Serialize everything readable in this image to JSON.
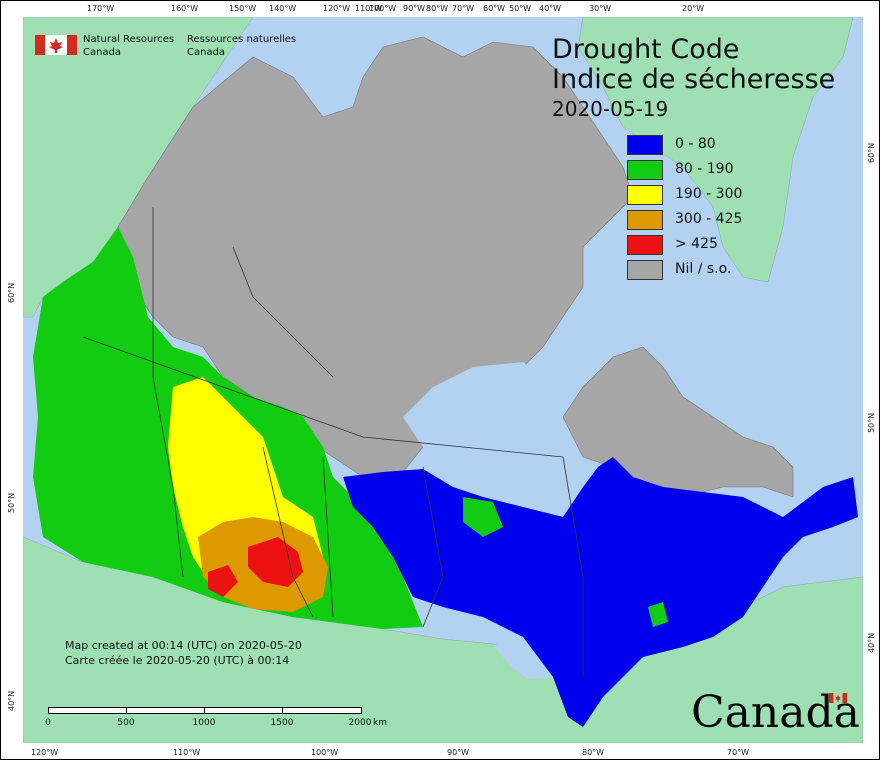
{
  "header": {
    "agency_en_line1": "Natural Resources",
    "agency_en_line2": "Canada",
    "agency_fr_line1": "Ressources naturelles",
    "agency_fr_line2": "Canada"
  },
  "title": {
    "en": "Drought Code",
    "fr": "Indice de sécheresse",
    "date": "2020-05-19"
  },
  "legend": [
    {
      "label": "0 - 80",
      "color": "#0000ee"
    },
    {
      "label": "80 - 190",
      "color": "#11cc11"
    },
    {
      "label": "190 - 300",
      "color": "#ffff00"
    },
    {
      "label": "300 - 425",
      "color": "#dd9900"
    },
    {
      "label": "> 425",
      "color": "#ee1111"
    },
    {
      "label": "Nil / s.o.",
      "color": "#a6a6a6"
    }
  ],
  "credits": {
    "line1": "Map created at 00:14 (UTC) on 2020-05-20",
    "line2": "Carte créée le 2020-05-20 (UTC) à 00:14"
  },
  "scale_bar": {
    "labels": [
      "0",
      "500",
      "1000",
      "1500",
      "2000"
    ],
    "unit": "km"
  },
  "wordmark": "Canada",
  "graticule": {
    "top": [
      "170°W",
      "160°W",
      "150°W",
      "140°W",
      "120°W",
      "110°W",
      "100°W",
      "90°W",
      "80°W",
      "70°W",
      "60°W",
      "50°W",
      "40°W",
      "30°W",
      "20°W"
    ],
    "bottom": [
      "120°W",
      "110°W",
      "100°W",
      "90°W",
      "80°W",
      "70°W"
    ],
    "left": [
      "60°N",
      "50°N",
      "40°N"
    ],
    "right": [
      "60°N",
      "50°N",
      "40°N"
    ]
  },
  "colors": {
    "ocean": "#b3d1f0",
    "other_land": "#9fdfb4",
    "no_data": "#a6a6a6"
  }
}
